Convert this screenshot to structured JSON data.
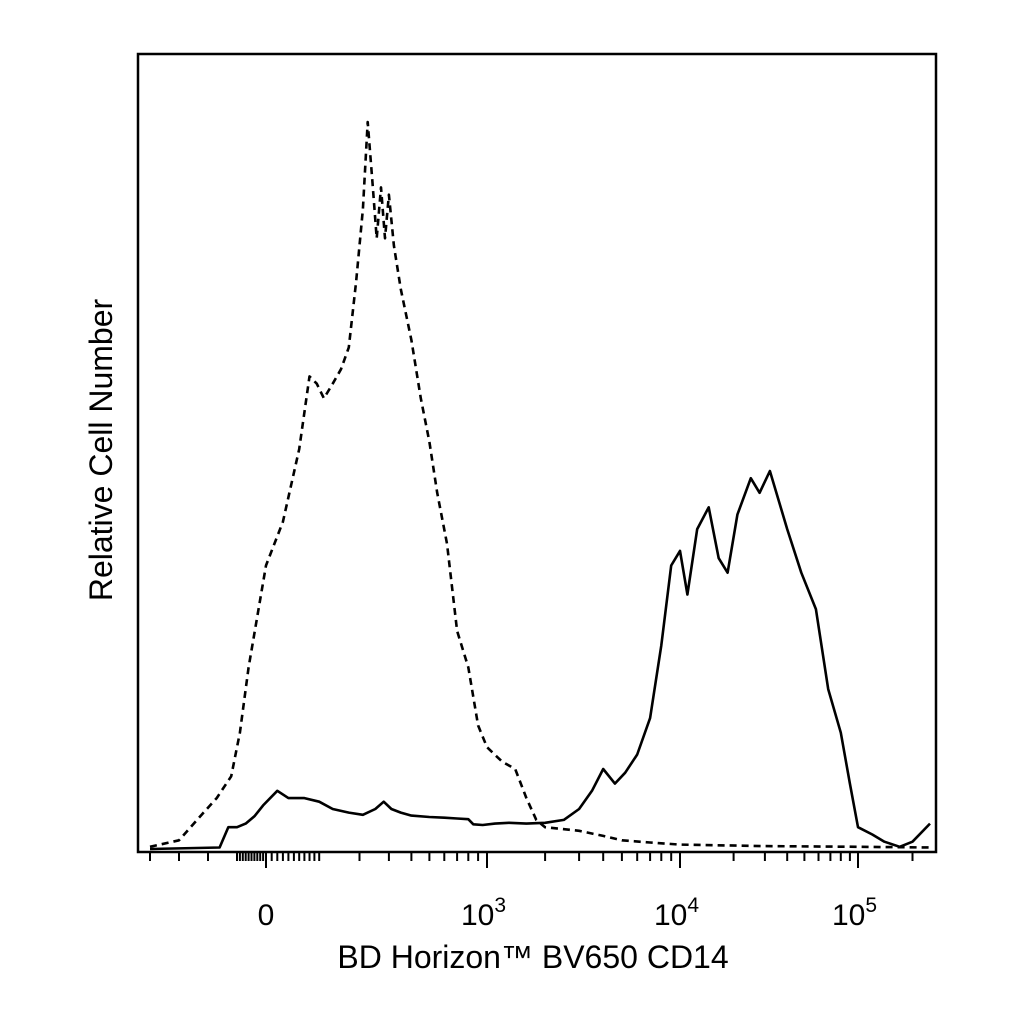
{
  "chart_data": {
    "type": "line",
    "xlabel": "BD Horizon™ BV650 CD14",
    "ylabel": "Relative Cell Number",
    "x_scale": "logicle",
    "x_range": [
      -400,
      250000
    ],
    "y_range": [
      0,
      100
    ],
    "grid": false,
    "line_color": "#000000",
    "x_tick_labels": [
      {
        "value": 0,
        "label": "0"
      },
      {
        "value": 1000,
        "label": "10",
        "superscript": "3"
      },
      {
        "value": 10000,
        "label": "10",
        "superscript": "4"
      },
      {
        "value": 100000,
        "label": "10",
        "superscript": "5"
      }
    ],
    "series": [
      {
        "style": "dashed",
        "points": [
          [
            -400,
            0.3
          ],
          [
            -300,
            1.2
          ],
          [
            -220,
            4.8
          ],
          [
            -170,
            7.0
          ],
          [
            -120,
            10.0
          ],
          [
            -90,
            16.0
          ],
          [
            -60,
            25.0
          ],
          [
            -30,
            32.0
          ],
          [
            0,
            39.0
          ],
          [
            30,
            45.0
          ],
          [
            60,
            55.0
          ],
          [
            80,
            65.0
          ],
          [
            95,
            64.0
          ],
          [
            110,
            62.0
          ],
          [
            130,
            64.0
          ],
          [
            150,
            66.0
          ],
          [
            170,
            69.0
          ],
          [
            190,
            78.0
          ],
          [
            210,
            88.0
          ],
          [
            225,
            100.0
          ],
          [
            240,
            92.0
          ],
          [
            255,
            84.0
          ],
          [
            270,
            91.0
          ],
          [
            285,
            84.0
          ],
          [
            300,
            90.0
          ],
          [
            320,
            83.0
          ],
          [
            350,
            77.0
          ],
          [
            400,
            70.0
          ],
          [
            450,
            62.0
          ],
          [
            500,
            56.0
          ],
          [
            550,
            49.0
          ],
          [
            620,
            42.0
          ],
          [
            700,
            30.0
          ],
          [
            800,
            25.0
          ],
          [
            900,
            17.0
          ],
          [
            1000,
            14.0
          ],
          [
            1200,
            12.0
          ],
          [
            1400,
            11.0
          ],
          [
            1600,
            7.0
          ],
          [
            1800,
            4.0
          ],
          [
            2000,
            3.0
          ],
          [
            3000,
            2.5
          ],
          [
            4000,
            1.8
          ],
          [
            5000,
            1.2
          ],
          [
            7000,
            0.9
          ],
          [
            10000,
            0.6
          ],
          [
            30000,
            0.4
          ],
          [
            100000,
            0.3
          ],
          [
            250000,
            0.2
          ]
        ]
      },
      {
        "style": "solid",
        "points": [
          [
            -400,
            0.0
          ],
          [
            -160,
            0.2
          ],
          [
            -130,
            3.0
          ],
          [
            -100,
            3.0
          ],
          [
            -70,
            3.5
          ],
          [
            -40,
            4.5
          ],
          [
            -10,
            6.0
          ],
          [
            20,
            8.0
          ],
          [
            40,
            7.0
          ],
          [
            70,
            7.0
          ],
          [
            100,
            6.5
          ],
          [
            130,
            5.5
          ],
          [
            170,
            5.0
          ],
          [
            210,
            4.7
          ],
          [
            250,
            5.5
          ],
          [
            280,
            6.5
          ],
          [
            310,
            5.5
          ],
          [
            350,
            5.0
          ],
          [
            400,
            4.6
          ],
          [
            500,
            4.4
          ],
          [
            600,
            4.3
          ],
          [
            700,
            4.2
          ],
          [
            800,
            4.1
          ],
          [
            850,
            3.4
          ],
          [
            950,
            3.3
          ],
          [
            1100,
            3.5
          ],
          [
            1300,
            3.6
          ],
          [
            1600,
            3.5
          ],
          [
            2000,
            3.6
          ],
          [
            2500,
            4.0
          ],
          [
            3000,
            5.5
          ],
          [
            3500,
            8.0
          ],
          [
            4000,
            11.0
          ],
          [
            4600,
            9.0
          ],
          [
            5200,
            10.5
          ],
          [
            6000,
            13.0
          ],
          [
            7000,
            18.0
          ],
          [
            8000,
            28.0
          ],
          [
            9000,
            39.0
          ],
          [
            10000,
            41.0
          ],
          [
            11000,
            35.0
          ],
          [
            12500,
            44.0
          ],
          [
            14500,
            47.0
          ],
          [
            16500,
            40.0
          ],
          [
            18500,
            38.0
          ],
          [
            21000,
            46.0
          ],
          [
            25000,
            51.0
          ],
          [
            28000,
            49.0
          ],
          [
            32000,
            52.0
          ],
          [
            40000,
            44.0
          ],
          [
            48000,
            38.0
          ],
          [
            58000,
            33.0
          ],
          [
            68000,
            22.0
          ],
          [
            80000,
            16.0
          ],
          [
            90000,
            9.0
          ],
          [
            100000,
            3.0
          ],
          [
            120000,
            2.0
          ],
          [
            140000,
            1.0
          ],
          [
            170000,
            0.3
          ],
          [
            200000,
            1.0
          ],
          [
            250000,
            3.5
          ]
        ]
      }
    ]
  }
}
